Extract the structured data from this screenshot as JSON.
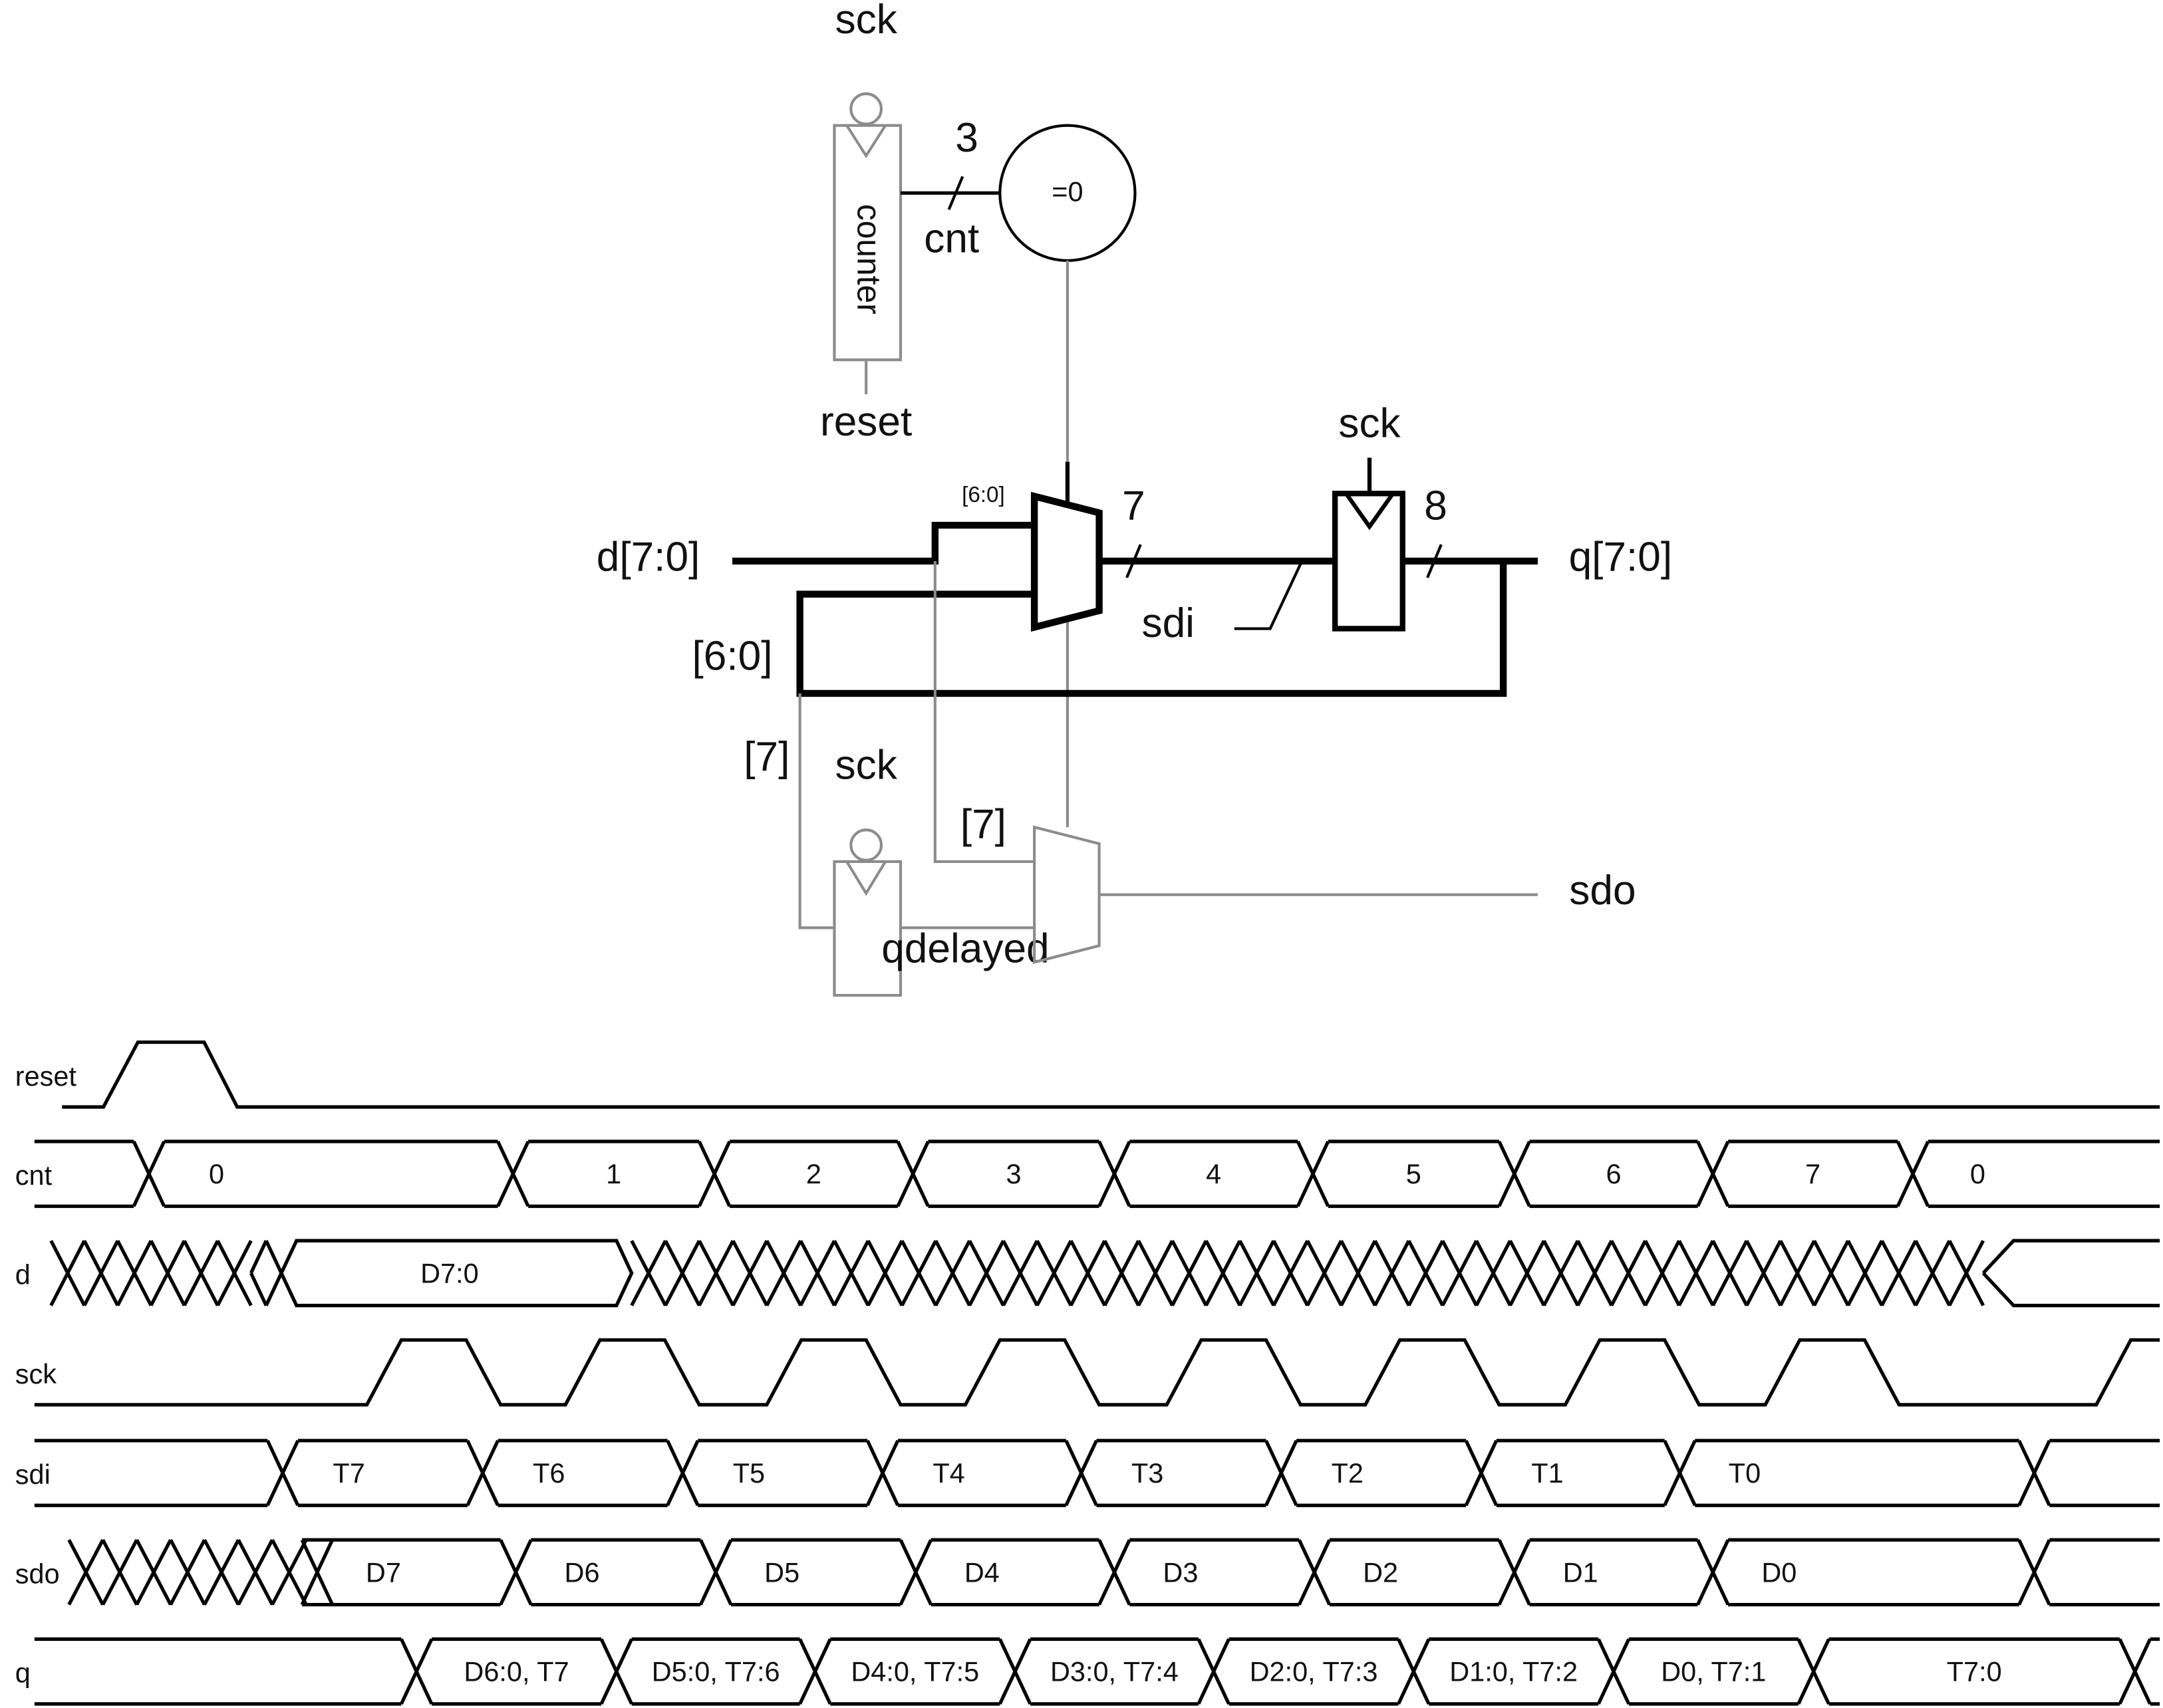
{
  "schematic": {
    "counter_clock": "sck",
    "counter_label": "counter",
    "counter_reset": "reset",
    "cnt_bus_width": "3",
    "cnt_signal": "cnt",
    "zero_detect": "=0",
    "mux_input_slice": "[6:0]",
    "mux_output_width": "7",
    "d_input": "d[7:0]",
    "feedback_slice": "[6:0]",
    "sdi_label": "sdi",
    "register_clock": "sck",
    "register_width": "8",
    "q_output": "q[7:0]",
    "msb_slice_left": "[7]",
    "msb_slice_right": "[7]",
    "delay_clock": "sck",
    "qdelayed_label": "qdelayed",
    "sdo_output": "sdo"
  },
  "timing": {
    "signals": [
      {
        "name": "reset",
        "kind": "pulse",
        "label": "reset"
      },
      {
        "name": "cnt",
        "kind": "bus",
        "label": "cnt",
        "values": [
          "0",
          "1",
          "2",
          "3",
          "4",
          "5",
          "6",
          "7",
          "0"
        ]
      },
      {
        "name": "d",
        "kind": "bus",
        "label": "d",
        "values": [
          "D7:0"
        ]
      },
      {
        "name": "sck",
        "kind": "clock",
        "label": "sck"
      },
      {
        "name": "sdi",
        "kind": "bus",
        "label": "sdi",
        "values": [
          "T7",
          "T6",
          "T5",
          "T4",
          "T3",
          "T2",
          "T1",
          "T0"
        ]
      },
      {
        "name": "sdo",
        "kind": "bus",
        "label": "sdo",
        "values": [
          "D7",
          "D6",
          "D5",
          "D4",
          "D3",
          "D2",
          "D1",
          "D0"
        ]
      },
      {
        "name": "q",
        "kind": "bus",
        "label": "q",
        "values": [
          "D6:0, T7",
          "D5:0, T7:6",
          "D4:0, T7:5",
          "D3:0, T7:4",
          "D2:0, T7:3",
          "D1:0, T7:2",
          "D0, T7:1",
          "T7:0"
        ]
      }
    ]
  }
}
